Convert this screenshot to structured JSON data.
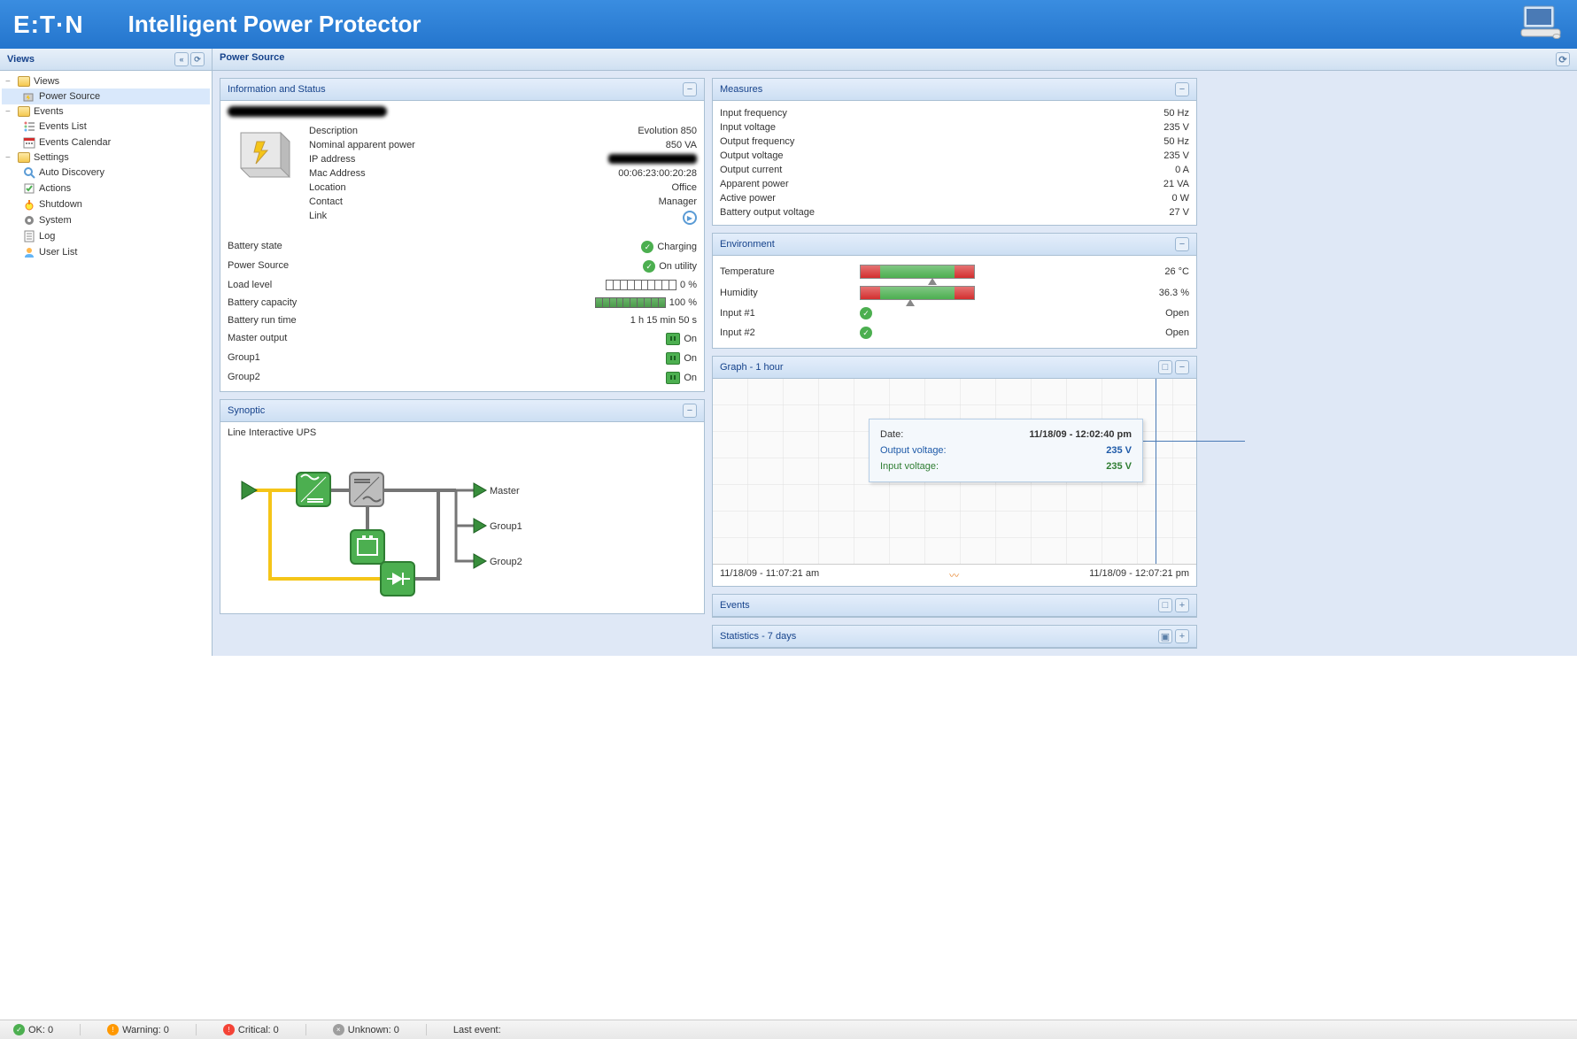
{
  "brand": "E:T·N",
  "app_title": "Intelligent Power Protector",
  "sidebar": {
    "title": "Views",
    "tree": {
      "views": "Views",
      "power_source": "Power Source",
      "events": "Events",
      "events_list": "Events List",
      "events_calendar": "Events Calendar",
      "settings": "Settings",
      "auto_discovery": "Auto Discovery",
      "actions": "Actions",
      "shutdown": "Shutdown",
      "system": "System",
      "log": "Log",
      "user_list": "User List"
    }
  },
  "main_title": "Power Source",
  "info_status": {
    "title": "Information and Status",
    "device_name": "████████████████",
    "rows": {
      "description_label": "Description",
      "description_value": "Evolution 850",
      "nominal_label": "Nominal apparent power",
      "nominal_value": "850 VA",
      "ip_label": "IP address",
      "ip_value": "████████████",
      "mac_label": "Mac Address",
      "mac_value": "00:06:23:00:20:28",
      "location_label": "Location",
      "location_value": "Office",
      "contact_label": "Contact",
      "contact_value": "Manager",
      "link_label": "Link"
    },
    "states": {
      "battery_state_label": "Battery state",
      "battery_state_value": "Charging",
      "power_source_label": "Power Source",
      "power_source_value": "On utility",
      "load_level_label": "Load level",
      "load_level_value": "0 %",
      "load_level_pct": 0,
      "battery_capacity_label": "Battery capacity",
      "battery_capacity_value": "100 %",
      "battery_capacity_pct": 100,
      "battery_runtime_label": "Battery run time",
      "battery_runtime_value": "1 h 15 min 50 s",
      "master_output_label": "Master output",
      "master_output_value": "On",
      "group1_label": "Group1",
      "group1_value": "On",
      "group2_label": "Group2",
      "group2_value": "On"
    }
  },
  "synoptic": {
    "title": "Synoptic",
    "subtitle": "Line Interactive UPS",
    "outputs": {
      "master": "Master",
      "group1": "Group1",
      "group2": "Group2"
    },
    "colors": {
      "node_active": "#4caf50",
      "node_active_border": "#2e7d32",
      "node_inactive": "#bdbdbd",
      "node_inactive_border": "#757575",
      "path_active": "#f5c518",
      "path_inactive": "#757575",
      "triangle": "#388e3c"
    }
  },
  "measures": {
    "title": "Measures",
    "rows": [
      {
        "label": "Input frequency",
        "value": "50 Hz"
      },
      {
        "label": "Input voltage",
        "value": "235 V"
      },
      {
        "label": "Output frequency",
        "value": "50 Hz"
      },
      {
        "label": "Output voltage",
        "value": "235 V"
      },
      {
        "label": "Output current",
        "value": "0 A"
      },
      {
        "label": "Apparent power",
        "value": "21 VA"
      },
      {
        "label": "Active power",
        "value": "0 W"
      },
      {
        "label": "Battery output voltage",
        "value": "27 V"
      }
    ]
  },
  "environment": {
    "title": "Environment",
    "temperature_label": "Temperature",
    "temperature_value": "26 °C",
    "temperature_pointer_pct": 70,
    "humidity_label": "Humidity",
    "humidity_value": "36.3 %",
    "humidity_pointer_pct": 40,
    "input1_label": "Input #1",
    "input1_value": "Open",
    "input2_label": "Input #2",
    "input2_value": "Open"
  },
  "graph": {
    "title": "Graph - 1 hour",
    "start_time": "11/18/09 - 11:07:21 am",
    "end_time": "11/18/09 - 12:07:21 pm",
    "tooltip": {
      "date_label": "Date:",
      "date_value": "11/18/09 - 12:02:40 pm",
      "output_label": "Output voltage:",
      "output_value": "235 V",
      "output_color": "#1e5aa8",
      "input_label": "Input voltage:",
      "input_value": "235 V",
      "input_color": "#2e7d32"
    },
    "grid_color": "#e0e0e0",
    "background": "#fafafa"
  },
  "events_panel": {
    "title": "Events"
  },
  "statistics_panel": {
    "title": "Statistics - 7 days"
  },
  "statusbar": {
    "ok_label": "OK: 0",
    "warning_label": "Warning: 0",
    "critical_label": "Critical: 0",
    "unknown_label": "Unknown: 0",
    "last_event_label": "Last event:"
  }
}
